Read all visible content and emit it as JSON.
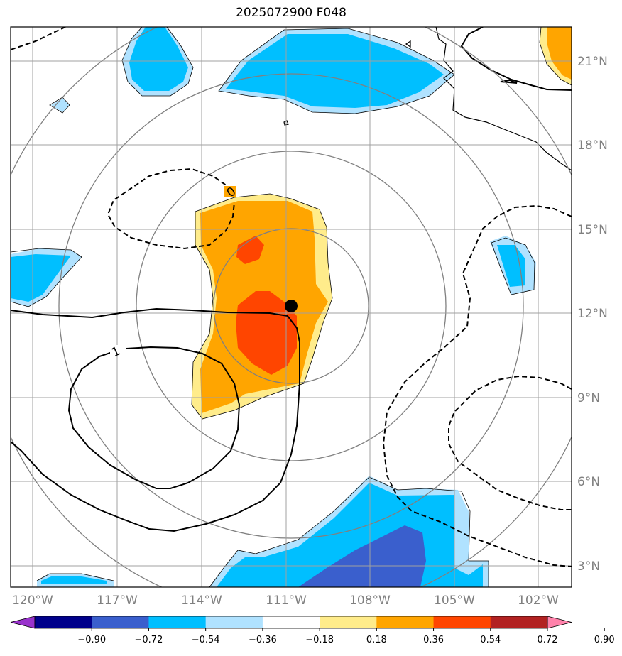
{
  "title": "2025072900 F048",
  "lon_labels": [
    "120°W",
    "117°W",
    "114°W",
    "111°W",
    "108°W",
    "105°W",
    "102°W"
  ],
  "lat_labels": [
    "21°N",
    "18°N",
    "15°N",
    "12°N",
    "9°N",
    "6°N",
    "3°N"
  ],
  "contour_labels": [
    "0",
    "1"
  ],
  "colorbar": {
    "ticks": [
      "−0.90",
      "−0.72",
      "−0.54",
      "−0.36",
      "−0.18",
      "0.18",
      "0.36",
      "0.54",
      "0.72",
      "0.90"
    ],
    "colors": [
      "#9932cc",
      "#00008b",
      "#3a5fcd",
      "#00bfff",
      "#b0e2ff",
      "#ffffff",
      "#ffec8b",
      "#ffa500",
      "#ff4500",
      "#b22222",
      "#ff82ab"
    ]
  },
  "map_colors": {
    "light_blue": "#b0e2ff",
    "blue": "#00bfff",
    "royal_blue": "#3a5fcd",
    "pale_yellow": "#ffec8b",
    "orange": "#ffa500",
    "orange_red": "#ff4500",
    "grid": "#a0a0a0",
    "range_rings": "#808080",
    "storm_marker": "#000000"
  }
}
